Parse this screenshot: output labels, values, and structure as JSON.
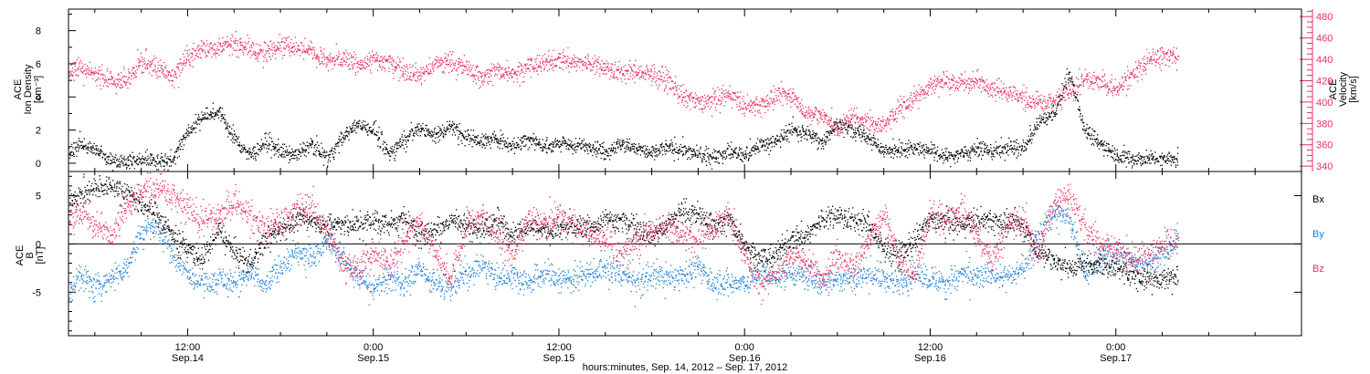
{
  "figure": {
    "xlabel": "hours:minutes, Sep. 14, 2012 – Sep. 17, 2012",
    "x_ticks": [
      {
        "hours": 12,
        "time": "12:00",
        "date": "Sep.14"
      },
      {
        "hours": 24,
        "time": "0:00",
        "date": "Sep.15"
      },
      {
        "hours": 36,
        "time": "12:00",
        "date": "Sep.15"
      },
      {
        "hours": 48,
        "time": "0:00",
        "date": "Sep.16"
      },
      {
        "hours": 60,
        "time": "12:00",
        "date": "Sep.16"
      },
      {
        "hours": 72,
        "time": "0:00",
        "date": "Sep.17"
      }
    ]
  },
  "colors": {
    "density": "#000000",
    "velocity": "#e8305e",
    "bx": "#000000",
    "by": "#1e7fd8",
    "bz": "#e8305e",
    "frame": "#000000"
  },
  "chart_data": [
    {
      "type": "scatter",
      "panel": "plasma",
      "ylabel": [
        "ACE",
        "Ion Density",
        "[cm⁻³]"
      ],
      "ylabel_right": [
        "ACE",
        "Velocity",
        "[km/s]"
      ],
      "xlim_hours": [
        4.3,
        84.0
      ],
      "ylim": [
        -0.5,
        9.3
      ],
      "y_ticks": [
        0,
        2,
        4,
        6,
        8
      ],
      "ylim_right": [
        335,
        487
      ],
      "y_ticks_right": [
        340,
        360,
        380,
        400,
        420,
        440,
        460,
        480
      ],
      "series": [
        {
          "name": "Ion Density",
          "axis": "left",
          "color_key": "density",
          "x": [
            4.3,
            5,
            6,
            7,
            8,
            9,
            10,
            11,
            12,
            13,
            14,
            15,
            16,
            17,
            18,
            19,
            20,
            21,
            22,
            23,
            24,
            25,
            26,
            27,
            28,
            29,
            30,
            31,
            32,
            33,
            34,
            35,
            36,
            37,
            38,
            39,
            40,
            41,
            42,
            43,
            44,
            45,
            46,
            47,
            48,
            49,
            50,
            51,
            52,
            53,
            54,
            55,
            56,
            57,
            58,
            59,
            60,
            61,
            62,
            63,
            64,
            65,
            66,
            67,
            68,
            69,
            70,
            71,
            72,
            73,
            74,
            75,
            76
          ],
          "y": [
            0.6,
            1.2,
            0.8,
            0.2,
            0.1,
            0.2,
            0.2,
            0.2,
            2.0,
            2.8,
            3.2,
            1.5,
            0.5,
            1.3,
            0.7,
            0.5,
            1.2,
            0.3,
            1.6,
            2.4,
            2.0,
            0.6,
            1.5,
            2.2,
            1.7,
            2.3,
            1.6,
            1.4,
            1.5,
            1.1,
            1.6,
            1.0,
            1.3,
            1.0,
            1.1,
            0.7,
            1.2,
            0.9,
            0.6,
            1.0,
            0.8,
            0.5,
            0.4,
            0.7,
            0.5,
            1.2,
            1.3,
            2.1,
            1.8,
            1.3,
            2.4,
            2.0,
            1.6,
            0.7,
            0.9,
            1.0,
            0.8,
            0.4,
            0.6,
            0.9,
            0.7,
            1.0,
            0.9,
            2.5,
            3.0,
            5.5,
            2.0,
            1.2,
            0.5,
            0.3,
            0.3,
            0.3,
            0.3
          ]
        },
        {
          "name": "Velocity",
          "axis": "right",
          "color_key": "velocity",
          "x": [
            4.3,
            5,
            6,
            7,
            8,
            9,
            10,
            11,
            12,
            13,
            14,
            15,
            16,
            17,
            18,
            19,
            20,
            21,
            22,
            23,
            24,
            25,
            26,
            27,
            28,
            29,
            30,
            31,
            32,
            33,
            34,
            35,
            36,
            37,
            38,
            39,
            40,
            41,
            42,
            43,
            44,
            45,
            46,
            47,
            48,
            49,
            50,
            51,
            52,
            53,
            54,
            55,
            56,
            57,
            58,
            59,
            60,
            61,
            62,
            63,
            64,
            65,
            66,
            67,
            68,
            69,
            70,
            71,
            72,
            73,
            74,
            75,
            76
          ],
          "y": [
            425,
            432,
            428,
            418,
            420,
            438,
            432,
            424,
            442,
            452,
            450,
            456,
            450,
            446,
            455,
            452,
            448,
            438,
            442,
            434,
            440,
            438,
            432,
            426,
            436,
            438,
            432,
            424,
            430,
            428,
            434,
            436,
            440,
            438,
            436,
            432,
            428,
            428,
            426,
            422,
            405,
            400,
            402,
            408,
            396,
            398,
            404,
            408,
            388,
            390,
            374,
            388,
            382,
            378,
            396,
            405,
            416,
            420,
            418,
            420,
            414,
            410,
            404,
            400,
            400,
            410,
            422,
            420,
            412,
            426,
            438,
            446,
            440
          ]
        }
      ]
    },
    {
      "type": "scatter",
      "panel": "magnetic_field",
      "ylabel": [
        "ACE",
        "B",
        "[nT]"
      ],
      "xlim_hours": [
        4.3,
        84.0
      ],
      "ylim": [
        -9.5,
        7.5
      ],
      "y_ticks": [
        -5,
        0,
        5
      ],
      "zero_line": true,
      "series": [
        {
          "name": "Bx",
          "color_key": "bx",
          "x": [
            4.3,
            5,
            6,
            7,
            8,
            9,
            10,
            11,
            12,
            13,
            14,
            15,
            16,
            17,
            18,
            19,
            20,
            21,
            22,
            23,
            24,
            25,
            26,
            27,
            28,
            29,
            30,
            31,
            32,
            33,
            34,
            35,
            36,
            37,
            38,
            39,
            40,
            41,
            42,
            43,
            44,
            45,
            46,
            47,
            48,
            49,
            50,
            51,
            52,
            53,
            54,
            55,
            56,
            57,
            58,
            59,
            60,
            61,
            62,
            63,
            64,
            65,
            66,
            67,
            68,
            69,
            70,
            71,
            72,
            73,
            74,
            75,
            76
          ],
          "y": [
            4.5,
            5.0,
            5.8,
            6.0,
            5.5,
            4.0,
            3.0,
            1.0,
            -0.5,
            -1.5,
            1.5,
            -1.0,
            -2.0,
            0.5,
            1.5,
            2.5,
            2.5,
            2.0,
            2.0,
            2.0,
            2.5,
            2.0,
            2.5,
            1.0,
            1.5,
            2.5,
            2.0,
            1.5,
            2.5,
            1.0,
            2.0,
            1.5,
            1.5,
            2.0,
            1.5,
            2.5,
            2.5,
            2.0,
            1.0,
            2.0,
            3.5,
            3.0,
            2.0,
            2.5,
            0.0,
            -1.5,
            -1.0,
            0.5,
            1.0,
            2.5,
            3.0,
            2.5,
            2.0,
            -0.5,
            -1.0,
            0.5,
            2.5,
            2.5,
            2.0,
            2.5,
            2.5,
            2.0,
            2.0,
            -1.0,
            -1.5,
            -2.5,
            -2.0,
            -2.0,
            -2.5,
            -3.0,
            -3.5,
            -3.5,
            -3.5
          ]
        },
        {
          "name": "By",
          "color_key": "by",
          "x": [
            4.3,
            5,
            6,
            7,
            8,
            9,
            10,
            11,
            12,
            13,
            14,
            15,
            16,
            17,
            18,
            19,
            20,
            21,
            22,
            23,
            24,
            25,
            26,
            27,
            28,
            29,
            30,
            31,
            32,
            33,
            34,
            35,
            36,
            37,
            38,
            39,
            40,
            41,
            42,
            43,
            44,
            45,
            46,
            47,
            48,
            49,
            50,
            51,
            52,
            53,
            54,
            55,
            56,
            57,
            58,
            59,
            60,
            61,
            62,
            63,
            64,
            65,
            66,
            67,
            68,
            69,
            70,
            71,
            72,
            73,
            74,
            75,
            76
          ],
          "y": [
            -5.5,
            -3.0,
            -4.5,
            -3.5,
            -2.5,
            1.5,
            2.0,
            -1.0,
            -3.0,
            -4.0,
            -3.5,
            -4.0,
            -3.0,
            -4.5,
            -2.0,
            -1.0,
            -1.5,
            0.5,
            -1.5,
            -3.5,
            -4.5,
            -3.5,
            -4.0,
            -2.5,
            -4.0,
            -4.5,
            -3.0,
            -2.0,
            -3.5,
            -3.0,
            -4.0,
            -3.0,
            -3.5,
            -3.5,
            -3.0,
            -2.5,
            -3.0,
            -4.0,
            -3.0,
            -3.5,
            -3.0,
            -2.5,
            -4.0,
            -4.0,
            -4.0,
            -3.0,
            -3.5,
            -3.0,
            -3.5,
            -4.0,
            -3.5,
            -3.5,
            -3.0,
            -3.5,
            -4.0,
            -3.0,
            -3.5,
            -4.0,
            -3.0,
            -3.5,
            -3.0,
            -3.5,
            -2.5,
            1.0,
            3.5,
            2.5,
            -3.0,
            -1.5,
            -1.0,
            -1.5,
            -2.0,
            -1.0,
            0.5
          ]
        },
        {
          "name": "Bz",
          "color_key": "bz",
          "x": [
            4.3,
            5,
            6,
            7,
            8,
            9,
            10,
            11,
            12,
            13,
            14,
            15,
            16,
            17,
            18,
            19,
            20,
            21,
            22,
            23,
            24,
            25,
            26,
            27,
            28,
            29,
            30,
            31,
            32,
            33,
            34,
            35,
            36,
            37,
            38,
            39,
            40,
            41,
            42,
            43,
            44,
            45,
            46,
            47,
            48,
            49,
            50,
            51,
            52,
            53,
            54,
            55,
            56,
            57,
            58,
            59,
            60,
            61,
            62,
            63,
            64,
            65,
            66,
            67,
            68,
            69,
            70,
            71,
            72,
            73,
            74,
            75,
            76
          ],
          "y": [
            2.5,
            3.5,
            2.0,
            1.0,
            4.0,
            5.5,
            6.0,
            5.0,
            3.5,
            2.5,
            3.0,
            4.5,
            3.0,
            1.5,
            2.5,
            3.5,
            4.0,
            1.0,
            -2.0,
            -2.5,
            -1.0,
            -2.0,
            0.5,
            2.5,
            -1.0,
            -3.5,
            2.0,
            3.0,
            1.0,
            -1.0,
            2.5,
            2.0,
            3.0,
            2.0,
            1.0,
            0.5,
            -1.0,
            0.5,
            1.5,
            2.0,
            1.0,
            0.5,
            2.0,
            3.0,
            -1.0,
            -4.0,
            -3.0,
            -1.0,
            -2.0,
            -3.5,
            -1.0,
            -2.5,
            0.5,
            3.0,
            -2.0,
            -3.0,
            3.0,
            2.5,
            3.5,
            1.0,
            -1.5,
            2.0,
            2.5,
            -1.0,
            4.5,
            5.0,
            1.5,
            0.0,
            -0.5,
            -1.5,
            -1.0,
            0.0,
            0.5
          ]
        }
      ]
    }
  ]
}
